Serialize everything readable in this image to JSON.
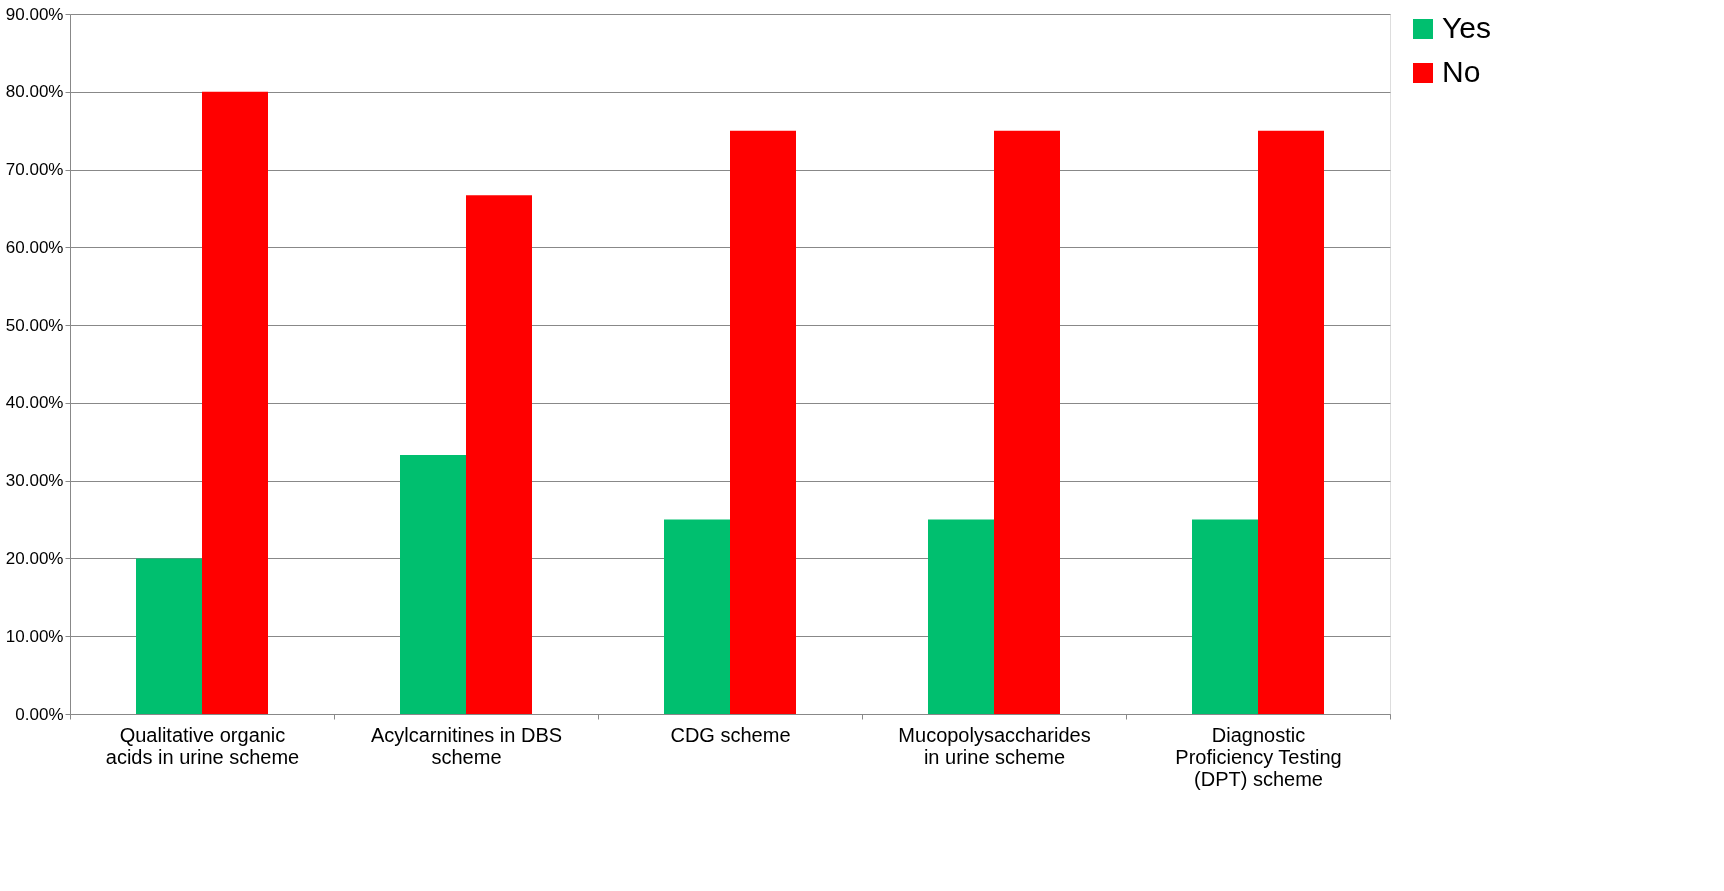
{
  "chart_data": {
    "type": "bar",
    "categories": [
      "Qualitative organic acids in urine scheme",
      "Acylcarnitines in DBS scheme",
      "CDG scheme",
      "Mucopolysaccharides in urine scheme",
      "Diagnostic Proficiency Testing (DPT) scheme"
    ],
    "series": [
      {
        "name": "Yes",
        "color": "#00bf6f",
        "values": [
          20.0,
          33.3,
          25.0,
          25.0,
          25.0
        ]
      },
      {
        "name": "No",
        "color": "#ff0000",
        "values": [
          80.0,
          66.7,
          75.0,
          75.0,
          75.0
        ]
      }
    ],
    "ylim": [
      0,
      90
    ],
    "yticks": [
      {
        "value": 0,
        "label": "0.00%"
      },
      {
        "value": 10,
        "label": "10.00%"
      },
      {
        "value": 20,
        "label": "20.00%"
      },
      {
        "value": 30,
        "label": "30.00%"
      },
      {
        "value": 40,
        "label": "40.00%"
      },
      {
        "value": 50,
        "label": "50.00%"
      },
      {
        "value": 60,
        "label": "60.00%"
      },
      {
        "value": 70,
        "label": "70.00%"
      },
      {
        "value": 80,
        "label": "80.00%"
      },
      {
        "value": 90,
        "label": "90.00%"
      }
    ],
    "grid": "y",
    "legend": "right"
  }
}
